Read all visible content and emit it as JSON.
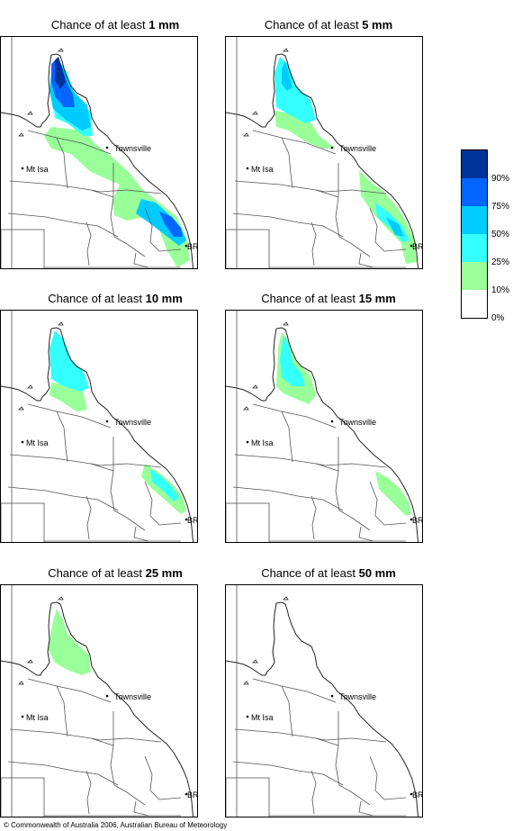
{
  "panels": [
    {
      "title_prefix": "Chance of at least ",
      "threshold": "1 mm"
    },
    {
      "title_prefix": "Chance of at least ",
      "threshold": "5 mm"
    },
    {
      "title_prefix": "Chance of at least ",
      "threshold": "10 mm"
    },
    {
      "title_prefix": "Chance of at least ",
      "threshold": "15 mm"
    },
    {
      "title_prefix": "Chance of at least ",
      "threshold": "25 mm"
    },
    {
      "title_prefix": "Chance of at least ",
      "threshold": "50 mm"
    }
  ],
  "places": {
    "townsville": "Townsville",
    "mt_isa": "Mt Isa",
    "brisbane": "BRIS"
  },
  "legend": {
    "labels": [
      "90%",
      "75%",
      "50%",
      "25%",
      "10%",
      "0%"
    ],
    "colors": [
      "#003399",
      "#0066ff",
      "#00ccff",
      "#33ffff",
      "#99ff99",
      "#ffffff"
    ]
  },
  "copyright": "© Commonwealth of Australia 2006, Australian Bureau of Meteorology"
}
